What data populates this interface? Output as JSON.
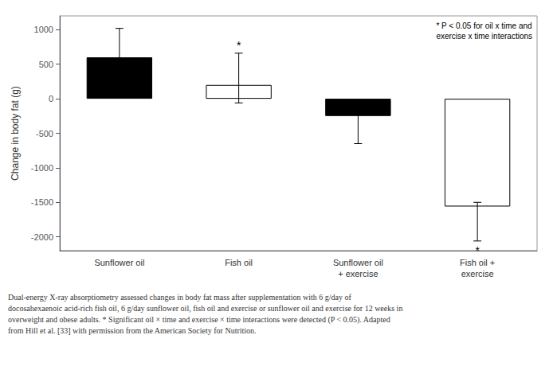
{
  "chart_data": {
    "type": "bar",
    "categories": [
      "Sunflower oil",
      "Fish oil",
      "Sunflower oil\n+ exercise",
      "Fish oil +\nexercise"
    ],
    "values": [
      600,
      200,
      -250,
      -1560
    ],
    "colors": [
      "black",
      "white",
      "black",
      "white"
    ],
    "error_upper": [
      420,
      460,
      130,
      60
    ],
    "error_lower": [
      280,
      260,
      400,
      500
    ],
    "bar_annotations": [
      null,
      "*",
      null,
      "*"
    ],
    "ylabel": "Change in body fat (g)",
    "annotation": "* P < 0.05 for oil x time and\nexercise x time interactions",
    "caption": [
      "Dual-energy X-ray absorptiometry assessed changes in body fat mass after supplementation with 6 g/day of",
      "docosahexaenoic acid-rich fish oil, 6 g/day sunflower oil, fish oil and exercise or sunflower oil and exercise for 12 weeks in",
      "overweight and obese adults. * Significant oil × time and exercise × time interactions were detected (P < 0.05). Adapted",
      "from Hill et al. [33] with permission from the American Society for Nutrition."
    ],
    "ylim": [
      -2200,
      1200
    ],
    "yticks": [
      -2000,
      -1500,
      -1000,
      -500,
      0,
      500,
      1000
    ],
    "grid": false
  }
}
